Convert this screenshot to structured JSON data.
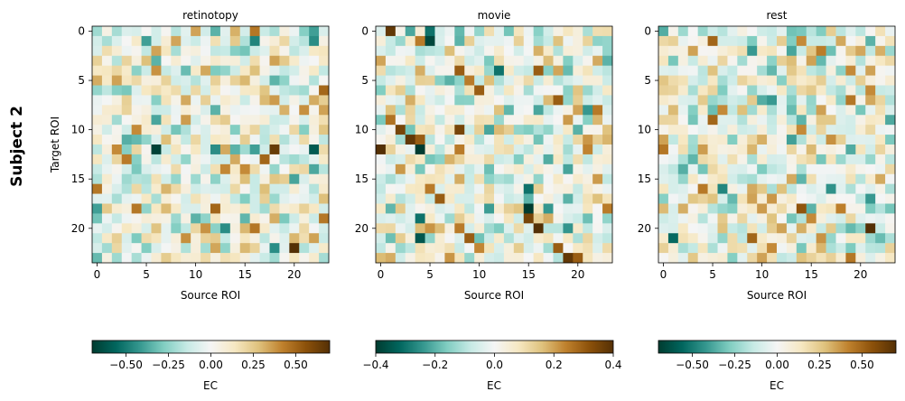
{
  "figure": {
    "row_label": "Subject 2"
  },
  "chart_data": [
    {
      "type": "heatmap",
      "title": "retinotopy",
      "xlabel": "Source ROI",
      "ylabel": "Target ROI",
      "n_rows": 24,
      "n_cols": 24,
      "x_ticks": [
        0,
        5,
        10,
        15,
        20
      ],
      "y_ticks": [
        0,
        5,
        10,
        15,
        20
      ],
      "colormap": "BrBG_r",
      "vmin": -0.7,
      "vmax": 0.7,
      "colorbar": {
        "label": "EC",
        "ticks": [
          -0.5,
          -0.25,
          0.0,
          0.25,
          0.5
        ],
        "tick_labels": [
          "−0.50",
          "−0.25",
          "0.00",
          "0.25",
          "0.50"
        ]
      },
      "seed": 11,
      "strong_cells": [
        {
          "row": 0,
          "col": 16,
          "value": 0.45
        },
        {
          "row": 0,
          "col": 12,
          "value": -0.35
        },
        {
          "row": 0,
          "col": 22,
          "value": -0.4
        },
        {
          "row": 1,
          "col": 5,
          "value": -0.4
        },
        {
          "row": 1,
          "col": 22,
          "value": -0.45
        },
        {
          "row": 3,
          "col": 6,
          "value": -0.35
        },
        {
          "row": 3,
          "col": 18,
          "value": 0.35
        },
        {
          "row": 5,
          "col": 2,
          "value": 0.35
        },
        {
          "row": 8,
          "col": 12,
          "value": -0.35
        },
        {
          "row": 8,
          "col": 23,
          "value": 0.35
        },
        {
          "row": 10,
          "col": 4,
          "value": 0.4
        },
        {
          "row": 10,
          "col": 8,
          "value": -0.3
        },
        {
          "row": 12,
          "col": 6,
          "value": -0.68
        },
        {
          "row": 12,
          "col": 2,
          "value": 0.4
        },
        {
          "row": 12,
          "col": 14,
          "value": -0.35
        },
        {
          "row": 12,
          "col": 16,
          "value": -0.4
        },
        {
          "row": 12,
          "col": 18,
          "value": 0.65
        },
        {
          "row": 12,
          "col": 22,
          "value": -0.6
        },
        {
          "row": 13,
          "col": 17,
          "value": 0.5
        },
        {
          "row": 14,
          "col": 15,
          "value": 0.4
        },
        {
          "row": 16,
          "col": 0,
          "value": 0.45
        },
        {
          "row": 18,
          "col": 4,
          "value": 0.45
        },
        {
          "row": 18,
          "col": 0,
          "value": -0.4
        },
        {
          "row": 18,
          "col": 12,
          "value": 0.5
        },
        {
          "row": 19,
          "col": 10,
          "value": -0.35
        },
        {
          "row": 19,
          "col": 23,
          "value": 0.45
        },
        {
          "row": 20,
          "col": 13,
          "value": -0.45
        },
        {
          "row": 20,
          "col": 16,
          "value": 0.45
        },
        {
          "row": 21,
          "col": 22,
          "value": 0.35
        },
        {
          "row": 22,
          "col": 20,
          "value": 0.72
        },
        {
          "row": 22,
          "col": 18,
          "value": -0.45
        }
      ]
    },
    {
      "type": "heatmap",
      "title": "movie",
      "xlabel": "Source ROI",
      "ylabel": "",
      "n_rows": 24,
      "n_cols": 24,
      "x_ticks": [
        0,
        5,
        10,
        15,
        20
      ],
      "y_ticks": [
        0,
        5,
        10,
        15,
        20
      ],
      "colormap": "BrBG_r",
      "vmin": -0.4,
      "vmax": 0.4,
      "colorbar": {
        "label": "EC",
        "ticks": [
          -0.4,
          -0.2,
          0.0,
          0.2,
          0.4
        ],
        "tick_labels": [
          "−0.4",
          "−0.2",
          "0.0",
          "0.2",
          "0.4"
        ]
      },
      "seed": 27,
      "strong_cells": [
        {
          "row": 0,
          "col": 1,
          "value": 0.38
        },
        {
          "row": 0,
          "col": 5,
          "value": -0.3
        },
        {
          "row": 1,
          "col": 5,
          "value": -0.38
        },
        {
          "row": 1,
          "col": 4,
          "value": 0.25
        },
        {
          "row": 3,
          "col": 23,
          "value": -0.2
        },
        {
          "row": 4,
          "col": 8,
          "value": 0.3
        },
        {
          "row": 4,
          "col": 12,
          "value": -0.3
        },
        {
          "row": 4,
          "col": 16,
          "value": 0.3
        },
        {
          "row": 5,
          "col": 9,
          "value": 0.25
        },
        {
          "row": 6,
          "col": 10,
          "value": 0.3
        },
        {
          "row": 7,
          "col": 18,
          "value": 0.3
        },
        {
          "row": 10,
          "col": 2,
          "value": 0.35
        },
        {
          "row": 10,
          "col": 8,
          "value": 0.35
        },
        {
          "row": 11,
          "col": 3,
          "value": 0.38
        },
        {
          "row": 11,
          "col": 4,
          "value": 0.3
        },
        {
          "row": 12,
          "col": 0,
          "value": 0.4
        },
        {
          "row": 12,
          "col": 4,
          "value": -0.4
        },
        {
          "row": 12,
          "col": 8,
          "value": 0.25
        },
        {
          "row": 16,
          "col": 5,
          "value": 0.25
        },
        {
          "row": 16,
          "col": 15,
          "value": -0.3
        },
        {
          "row": 17,
          "col": 6,
          "value": 0.3
        },
        {
          "row": 18,
          "col": 15,
          "value": -0.4
        },
        {
          "row": 18,
          "col": 23,
          "value": 0.25
        },
        {
          "row": 19,
          "col": 15,
          "value": 0.35
        },
        {
          "row": 19,
          "col": 4,
          "value": -0.3
        },
        {
          "row": 20,
          "col": 16,
          "value": 0.4
        },
        {
          "row": 20,
          "col": 8,
          "value": 0.25
        },
        {
          "row": 21,
          "col": 4,
          "value": -0.35
        },
        {
          "row": 21,
          "col": 9,
          "value": 0.3
        },
        {
          "row": 22,
          "col": 18,
          "value": 0.3
        },
        {
          "row": 23,
          "col": 19,
          "value": 0.38
        },
        {
          "row": 23,
          "col": 20,
          "value": 0.3
        }
      ]
    },
    {
      "type": "heatmap",
      "title": "rest",
      "xlabel": "Source ROI",
      "ylabel": "",
      "n_rows": 24,
      "n_cols": 24,
      "x_ticks": [
        0,
        5,
        10,
        15,
        20
      ],
      "y_ticks": [
        0,
        5,
        10,
        15,
        20
      ],
      "colormap": "BrBG_r",
      "vmin": -0.7,
      "vmax": 0.7,
      "colorbar": {
        "label": "EC",
        "ticks": [
          -0.5,
          -0.25,
          0.0,
          0.25,
          0.5
        ],
        "tick_labels": [
          "−0.50",
          "−0.25",
          "0.00",
          "0.25",
          "0.50"
        ]
      },
      "seed": 53,
      "strong_cells": [
        {
          "row": 1,
          "col": 5,
          "value": 0.5
        },
        {
          "row": 1,
          "col": 14,
          "value": 0.4
        },
        {
          "row": 1,
          "col": 21,
          "value": -0.35
        },
        {
          "row": 2,
          "col": 3,
          "value": 0.35
        },
        {
          "row": 3,
          "col": 15,
          "value": 0.35
        },
        {
          "row": 4,
          "col": 19,
          "value": 0.4
        },
        {
          "row": 6,
          "col": 21,
          "value": 0.4
        },
        {
          "row": 7,
          "col": 19,
          "value": 0.45
        },
        {
          "row": 8,
          "col": 6,
          "value": 0.4
        },
        {
          "row": 9,
          "col": 5,
          "value": 0.5
        },
        {
          "row": 10,
          "col": 14,
          "value": 0.4
        },
        {
          "row": 11,
          "col": 0,
          "value": 0.35
        },
        {
          "row": 12,
          "col": 0,
          "value": 0.45
        },
        {
          "row": 12,
          "col": 15,
          "value": 0.3
        },
        {
          "row": 17,
          "col": 9,
          "value": 0.35
        },
        {
          "row": 18,
          "col": 14,
          "value": 0.55
        },
        {
          "row": 18,
          "col": 15,
          "value": -0.35
        },
        {
          "row": 19,
          "col": 15,
          "value": 0.4
        },
        {
          "row": 19,
          "col": 13,
          "value": -0.3
        },
        {
          "row": 20,
          "col": 21,
          "value": 0.7
        },
        {
          "row": 20,
          "col": 12,
          "value": 0.35
        },
        {
          "row": 21,
          "col": 1,
          "value": -0.55
        },
        {
          "row": 21,
          "col": 9,
          "value": 0.5
        },
        {
          "row": 22,
          "col": 11,
          "value": 0.4
        },
        {
          "row": 23,
          "col": 19,
          "value": 0.45
        }
      ]
    }
  ]
}
